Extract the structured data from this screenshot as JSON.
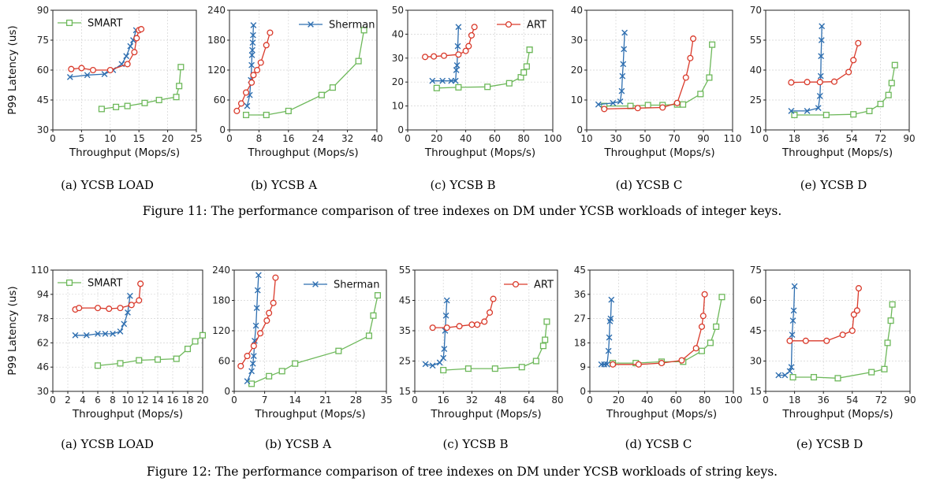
{
  "figures": [
    {
      "caption": "Figure 11: The performance comparison of tree indexes on DM under YCSB workloads of integer keys.",
      "subcaptions": [
        "(a) YCSB LOAD",
        "(b) YCSB A",
        "(c) YCSB B",
        "(d) YCSB C",
        "(e) YCSB D"
      ]
    },
    {
      "caption": "Figure 12: The performance comparison of tree indexes on DM under YCSB workloads of string keys.",
      "subcaptions": [
        "(a) YCSB LOAD",
        "(b) YCSB A",
        "(c) YCSB B",
        "(d) YCSB C",
        "(e) YCSB D"
      ]
    }
  ],
  "colors": {
    "SMART": "#6db85a",
    "Sherman": "#2f6fb0",
    "ART": "#d93a2b"
  },
  "markers": {
    "SMART": "square",
    "Sherman": "x",
    "ART": "circle"
  },
  "chart_data": [
    {
      "type": "line",
      "figure": 0,
      "panel": 0,
      "title": "(a) YCSB LOAD",
      "xlabel": "Throughput (Mops/s)",
      "ylabel": "P99 Latency (us)",
      "xlim": [
        0,
        25
      ],
      "ylim": [
        30,
        90
      ],
      "xticks": [
        0,
        5,
        10,
        15,
        20,
        25
      ],
      "yticks": [
        30,
        45,
        60,
        75,
        90
      ],
      "legend": "SMART",
      "grid": true,
      "series": [
        {
          "name": "SMART",
          "x": [
            8.5,
            11,
            13,
            16,
            18.5,
            21.5,
            22,
            22.3
          ],
          "y": [
            40.5,
            41.5,
            42,
            43.5,
            45,
            46.5,
            52,
            61.5
          ]
        },
        {
          "name": "Sherman",
          "x": [
            3,
            6,
            9,
            10.5,
            12,
            12.8,
            13.5,
            14,
            14.5
          ],
          "y": [
            56.5,
            57.5,
            58,
            60,
            63,
            67,
            72,
            75,
            80
          ]
        },
        {
          "name": "ART",
          "x": [
            3.2,
            5,
            7,
            10,
            13,
            14.2,
            14.6,
            15,
            15.4
          ],
          "y": [
            60.5,
            61,
            60,
            60,
            63,
            69,
            76,
            80,
            80.5
          ]
        }
      ]
    },
    {
      "type": "line",
      "figure": 0,
      "panel": 1,
      "title": "(b) YCSB A",
      "xlabel": "Throughput (Mops/s)",
      "ylabel": "",
      "xlim": [
        0,
        40
      ],
      "ylim": [
        0,
        240
      ],
      "xticks": [
        0,
        8,
        16,
        24,
        32,
        40
      ],
      "yticks": [
        0,
        60,
        120,
        180,
        240
      ],
      "legend": "Sherman",
      "grid": true,
      "series": [
        {
          "name": "SMART",
          "x": [
            4.5,
            10,
            16,
            25,
            28,
            35,
            36.5
          ],
          "y": [
            30,
            30,
            38,
            70,
            85,
            138,
            200
          ]
        },
        {
          "name": "Sherman",
          "x": [
            4.8,
            5.5,
            5.8,
            6,
            6.1,
            6.2,
            6.3,
            6.4,
            6.5
          ],
          "y": [
            48,
            70,
            100,
            130,
            150,
            160,
            175,
            190,
            210
          ]
        },
        {
          "name": "ART",
          "x": [
            2,
            3.2,
            4.5,
            6,
            6.5,
            7.5,
            8.5,
            10,
            11
          ],
          "y": [
            38,
            53,
            75,
            95,
            110,
            120,
            135,
            170,
            195
          ]
        }
      ]
    },
    {
      "type": "line",
      "figure": 0,
      "panel": 2,
      "title": "(c) YCSB B",
      "xlabel": "Throughput (Mops/s)",
      "ylabel": "",
      "xlim": [
        0,
        100
      ],
      "ylim": [
        0,
        50
      ],
      "xticks": [
        0,
        20,
        40,
        60,
        80,
        100
      ],
      "yticks": [
        0,
        10,
        20,
        30,
        40,
        50
      ],
      "legend": "ART",
      "grid": true,
      "series": [
        {
          "name": "SMART",
          "x": [
            20,
            35,
            55,
            70,
            78,
            80,
            82,
            84,
            84
          ],
          "y": [
            17.5,
            17.8,
            18,
            19.5,
            22,
            24,
            26.5,
            33.5,
            33.5
          ]
        },
        {
          "name": "Sherman",
          "x": [
            17,
            24,
            30,
            33,
            33.5,
            34,
            34.5,
            35
          ],
          "y": [
            20.5,
            20.5,
            20.5,
            20.5,
            25,
            27,
            35,
            43
          ]
        },
        {
          "name": "ART",
          "x": [
            12,
            18,
            25,
            35,
            40,
            42,
            44,
            46
          ],
          "y": [
            30.5,
            30.7,
            31,
            31.5,
            33,
            35,
            39.5,
            43
          ]
        }
      ]
    },
    {
      "type": "line",
      "figure": 0,
      "panel": 3,
      "title": "(d) YCSB C",
      "xlabel": "Throughput (Mops/s)",
      "ylabel": "",
      "xlim": [
        10,
        110
      ],
      "ylim": [
        0,
        40
      ],
      "xticks": [
        10,
        30,
        50,
        70,
        90,
        110
      ],
      "yticks": [
        0,
        10,
        20,
        30,
        40
      ],
      "legend": "",
      "grid": true,
      "series": [
        {
          "name": "SMART",
          "x": [
            22,
            40,
            52,
            62,
            72,
            76,
            88,
            94,
            96
          ],
          "y": [
            8,
            8,
            8.3,
            8.3,
            8.5,
            8.5,
            12,
            17.5,
            28.5
          ]
        },
        {
          "name": "Sherman",
          "x": [
            18,
            28,
            33,
            34,
            34.5,
            35,
            35.5,
            36
          ],
          "y": [
            8.5,
            9,
            9.5,
            13,
            18,
            22,
            27,
            32.5
          ]
        },
        {
          "name": "ART",
          "x": [
            22,
            45,
            62,
            72,
            78,
            81,
            83
          ],
          "y": [
            7,
            7.3,
            7.5,
            9,
            17.5,
            24,
            30.5
          ]
        }
      ]
    },
    {
      "type": "line",
      "figure": 0,
      "panel": 4,
      "title": "(e) YCSB D",
      "xlabel": "Throughput (Mops/s)",
      "ylabel": "",
      "xlim": [
        0,
        90
      ],
      "ylim": [
        10,
        70
      ],
      "xticks": [
        0,
        18,
        36,
        54,
        72,
        90
      ],
      "yticks": [
        10,
        25,
        40,
        55,
        70
      ],
      "legend": "",
      "grid": true,
      "series": [
        {
          "name": "SMART",
          "x": [
            18,
            38,
            55,
            65,
            72,
            77,
            79,
            81
          ],
          "y": [
            17.5,
            17.5,
            17.8,
            19.5,
            23,
            27.5,
            33.5,
            42.5
          ]
        },
        {
          "name": "Sherman",
          "x": [
            16,
            26,
            33,
            34,
            34.5,
            34.7,
            35,
            35.2
          ],
          "y": [
            19.5,
            19.5,
            21,
            27,
            37,
            47,
            55,
            62
          ]
        },
        {
          "name": "ART",
          "x": [
            16,
            26,
            34,
            43,
            52,
            55,
            58
          ],
          "y": [
            33.8,
            34,
            34,
            34.2,
            39,
            45,
            53.5
          ]
        }
      ]
    },
    {
      "type": "line",
      "figure": 1,
      "panel": 0,
      "title": "(a) YCSB LOAD",
      "xlabel": "Throughput (Mops/s)",
      "ylabel": "P99 Latency (us)",
      "xlim": [
        0,
        20
      ],
      "ylim": [
        30,
        110
      ],
      "xticks": [
        0,
        2,
        4,
        6,
        8,
        10,
        12,
        14,
        16,
        18,
        20
      ],
      "yticks": [
        30,
        46,
        62,
        78,
        94,
        110
      ],
      "legend": "SMART",
      "grid": true,
      "series": [
        {
          "name": "SMART",
          "x": [
            6,
            9,
            11.5,
            14,
            16.5,
            18,
            19,
            20
          ],
          "y": [
            47,
            48.5,
            50.5,
            51,
            51.5,
            58,
            63,
            67
          ]
        },
        {
          "name": "Sherman",
          "x": [
            3,
            4.5,
            6,
            7,
            8,
            9,
            9.5,
            10,
            10.3
          ],
          "y": [
            67,
            67,
            68,
            68,
            68,
            69.5,
            74.5,
            82,
            93
          ]
        },
        {
          "name": "ART",
          "x": [
            3,
            3.5,
            6,
            7.5,
            9,
            10.5,
            11.5,
            11.7
          ],
          "y": [
            84,
            85,
            85,
            84.5,
            85,
            87,
            90,
            101
          ]
        }
      ]
    },
    {
      "type": "line",
      "figure": 1,
      "panel": 1,
      "title": "(b) YCSB A",
      "xlabel": "Throughput (Mops/s)",
      "ylabel": "",
      "xlim": [
        0,
        35
      ],
      "ylim": [
        0,
        240
      ],
      "xticks": [
        0,
        7,
        14,
        21,
        28,
        35
      ],
      "yticks": [
        0,
        60,
        120,
        180,
        240
      ],
      "legend": "Sherman",
      "grid": true,
      "series": [
        {
          "name": "SMART",
          "x": [
            4,
            8,
            11,
            14,
            24,
            31,
            32,
            33
          ],
          "y": [
            15,
            30,
            40,
            55,
            80,
            110,
            150,
            190
          ]
        },
        {
          "name": "Sherman",
          "x": [
            3,
            4,
            4.3,
            4.5,
            4.7,
            5,
            5.2,
            5.4,
            5.6
          ],
          "y": [
            20,
            40,
            55,
            70,
            100,
            130,
            165,
            200,
            230
          ]
        },
        {
          "name": "ART",
          "x": [
            1.5,
            3,
            4.5,
            6,
            7.5,
            8,
            9,
            9.5
          ],
          "y": [
            50,
            70,
            90,
            115,
            140,
            155,
            175,
            225
          ]
        }
      ]
    },
    {
      "type": "line",
      "figure": 1,
      "panel": 2,
      "title": "(c) YCSB B",
      "xlabel": "Throughput (Mops/s)",
      "ylabel": "",
      "xlim": [
        0,
        80
      ],
      "ylim": [
        15,
        55
      ],
      "xticks": [
        0,
        16,
        32,
        48,
        64,
        80
      ],
      "yticks": [
        15,
        25,
        35,
        45,
        55
      ],
      "legend": "ART",
      "grid": true,
      "series": [
        {
          "name": "SMART",
          "x": [
            16,
            30,
            45,
            60,
            68,
            72,
            73,
            74
          ],
          "y": [
            22,
            22.5,
            22.5,
            23,
            25,
            30,
            32,
            38
          ]
        },
        {
          "name": "Sherman",
          "x": [
            6,
            10,
            14,
            16,
            16.5,
            17,
            17.5,
            18
          ],
          "y": [
            24,
            23.5,
            24.5,
            26,
            29,
            35,
            40,
            45
          ]
        },
        {
          "name": "ART",
          "x": [
            10,
            18,
            25,
            32,
            35,
            39,
            42,
            44
          ],
          "y": [
            36,
            36,
            36.5,
            37,
            37,
            38,
            41,
            45.5
          ]
        }
      ]
    },
    {
      "type": "line",
      "figure": 1,
      "panel": 3,
      "title": "(d) YCSB C",
      "xlabel": "Throughput (Mops/s)",
      "ylabel": "",
      "xlim": [
        0,
        100
      ],
      "ylim": [
        0,
        45
      ],
      "xticks": [
        0,
        20,
        40,
        60,
        80,
        100
      ],
      "yticks": [
        0,
        9,
        18,
        27,
        36,
        45
      ],
      "legend": "",
      "grid": true,
      "series": [
        {
          "name": "SMART",
          "x": [
            16,
            32,
            50,
            65,
            78,
            84,
            88,
            92
          ],
          "y": [
            10.5,
            10.5,
            11,
            11,
            15,
            18,
            24,
            35
          ]
        },
        {
          "name": "Sherman",
          "x": [
            8,
            10,
            12,
            13,
            13.5,
            14,
            14.5,
            15
          ],
          "y": [
            10,
            10,
            10,
            15,
            20,
            26,
            27,
            34
          ]
        },
        {
          "name": "ART",
          "x": [
            16,
            34,
            50,
            64,
            74,
            78,
            79,
            80
          ],
          "y": [
            10,
            10,
            10.5,
            11.5,
            16,
            24,
            28,
            36
          ]
        }
      ]
    },
    {
      "type": "line",
      "figure": 1,
      "panel": 4,
      "title": "(e) YCSB D",
      "xlabel": "Throughput (Mops/s)",
      "ylabel": "",
      "xlim": [
        0,
        90
      ],
      "ylim": [
        15,
        75
      ],
      "xticks": [
        0,
        18,
        36,
        54,
        72,
        90
      ],
      "yticks": [
        15,
        30,
        45,
        60,
        75
      ],
      "legend": "",
      "grid": true,
      "series": [
        {
          "name": "SMART",
          "x": [
            17,
            30,
            45,
            66,
            74,
            76,
            78,
            79
          ],
          "y": [
            22,
            22,
            21.5,
            24.5,
            26,
            39,
            50,
            58
          ]
        },
        {
          "name": "Sherman",
          "x": [
            8,
            12,
            15,
            16,
            16.5,
            17,
            17.5,
            18
          ],
          "y": [
            23,
            23,
            25,
            27,
            43,
            50,
            55,
            67
          ]
        },
        {
          "name": "ART",
          "x": [
            15,
            25,
            38,
            48,
            54,
            55,
            57,
            58
          ],
          "y": [
            40,
            40,
            40,
            43,
            45,
            53,
            55,
            66
          ]
        }
      ]
    }
  ]
}
